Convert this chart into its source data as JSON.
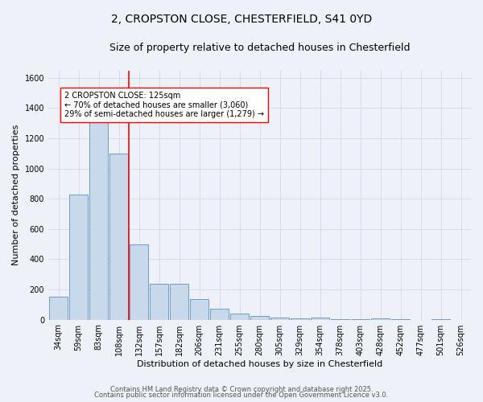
{
  "title_line1": "2, CROPSTON CLOSE, CHESTERFIELD, S41 0YD",
  "title_line2": "Size of property relative to detached houses in Chesterfield",
  "xlabel": "Distribution of detached houses by size in Chesterfield",
  "ylabel": "Number of detached properties",
  "bar_labels": [
    "34sqm",
    "59sqm",
    "83sqm",
    "108sqm",
    "132sqm",
    "157sqm",
    "182sqm",
    "206sqm",
    "231sqm",
    "255sqm",
    "280sqm",
    "305sqm",
    "329sqm",
    "354sqm",
    "378sqm",
    "403sqm",
    "428sqm",
    "452sqm",
    "477sqm",
    "501sqm",
    "526sqm"
  ],
  "bar_values": [
    150,
    830,
    1310,
    1100,
    500,
    235,
    235,
    135,
    70,
    42,
    25,
    15,
    10,
    12,
    5,
    2,
    10,
    1,
    0,
    1,
    0
  ],
  "bar_color": "#c9d9ec",
  "bar_edge_color": "#5a8fc0",
  "vline_index": 4,
  "vline_color": "red",
  "annotation_text": "2 CROPSTON CLOSE: 125sqm\n← 70% of detached houses are smaller (3,060)\n29% of semi-detached houses are larger (1,279) →",
  "annotation_box_color": "white",
  "annotation_box_edge_color": "red",
  "ylim": [
    0,
    1650
  ],
  "yticks": [
    0,
    200,
    400,
    600,
    800,
    1000,
    1200,
    1400,
    1600
  ],
  "grid_color": "#d0d8e8",
  "background_color": "#eef2f8",
  "footer_line1": "Contains HM Land Registry data © Crown copyright and database right 2025.",
  "footer_line2": "Contains public sector information licensed under the Open Government Licence v3.0.",
  "title_fontsize": 10,
  "subtitle_fontsize": 9,
  "axis_label_fontsize": 8,
  "tick_fontsize": 7,
  "annotation_fontsize": 7,
  "footer_fontsize": 6
}
